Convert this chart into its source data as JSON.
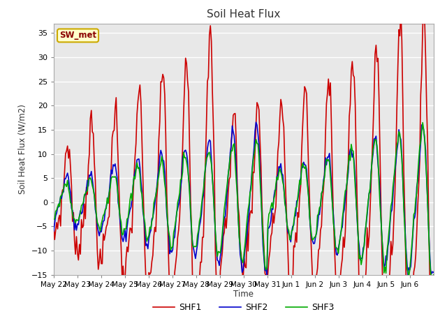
{
  "title": "Soil Heat Flux",
  "ylabel": "Soil Heat Flux (W/m2)",
  "xlabel": "Time",
  "ylim": [
    -15,
    37
  ],
  "yticks": [
    -15,
    -10,
    -5,
    0,
    5,
    10,
    15,
    20,
    25,
    30,
    35
  ],
  "fig_bg_color": "#ffffff",
  "plot_bg_color": "#e8e8e8",
  "grid_color": "#ffffff",
  "annotation_text": "SW_met",
  "annotation_color": "#8b0000",
  "annotation_bg": "#ffffcc",
  "annotation_edge": "#ccaa00",
  "line_colors": {
    "SHF1": "#cc0000",
    "SHF2": "#0000cc",
    "SHF3": "#00aa00"
  },
  "line_widths": {
    "SHF1": 1.2,
    "SHF2": 1.2,
    "SHF3": 1.2
  },
  "x_labels": [
    "May 22",
    "May 23",
    "May 24",
    "May 25",
    "May 26",
    "May 27",
    "May 28",
    "May 29",
    "May 30",
    "May 31",
    "Jun 1",
    "Jun 2",
    "Jun 3",
    "Jun 4",
    "Jun 5",
    "Jun 6"
  ]
}
